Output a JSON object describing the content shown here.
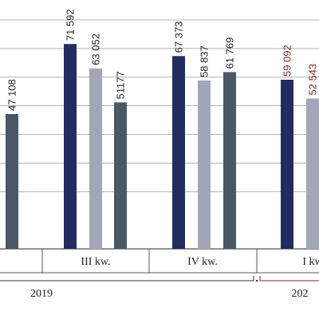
{
  "chart_data": {
    "type": "bar",
    "title": "",
    "xlabel": "",
    "ylabel": "",
    "grid": true,
    "ylim": [
      0,
      80000
    ],
    "colors": {
      "navy": "#232c5e",
      "light": "#a3a5b8",
      "slate": "#4a5766",
      "grid": "#9a9a9a",
      "axis": "#555555",
      "bracket_2019": "#333333",
      "bracket_2020": "#7a2a2a",
      "label_dark": "#222222",
      "label_red": "#7a2626"
    },
    "categories": [
      {
        "label": "",
        "year": "2019",
        "bars": [
          {
            "series": 2,
            "value": 47108,
            "label": "47 108"
          }
        ]
      },
      {
        "label": "III kw.",
        "year": "2019",
        "bars": [
          {
            "series": 0,
            "value": 71592,
            "label": "71 592"
          },
          {
            "series": 1,
            "value": 63052,
            "label": "63 052"
          },
          {
            "series": 2,
            "value": 51177,
            "label": "51177"
          }
        ]
      },
      {
        "label": "IV kw.",
        "year": "2019",
        "bars": [
          {
            "series": 0,
            "value": 67373,
            "label": "67 373"
          },
          {
            "series": 1,
            "value": 58837,
            "label": "58 837"
          },
          {
            "series": 2,
            "value": 61769,
            "label": "61 769"
          }
        ]
      },
      {
        "label": "I kw",
        "year": "202",
        "bars": [
          {
            "series": 0,
            "value": 59092,
            "label": "59 092",
            "red": true
          },
          {
            "series": 1,
            "value": 52543,
            "label": "52 543",
            "red": true
          }
        ]
      }
    ],
    "years": [
      {
        "label": "2019"
      },
      {
        "label": "202"
      }
    ]
  }
}
